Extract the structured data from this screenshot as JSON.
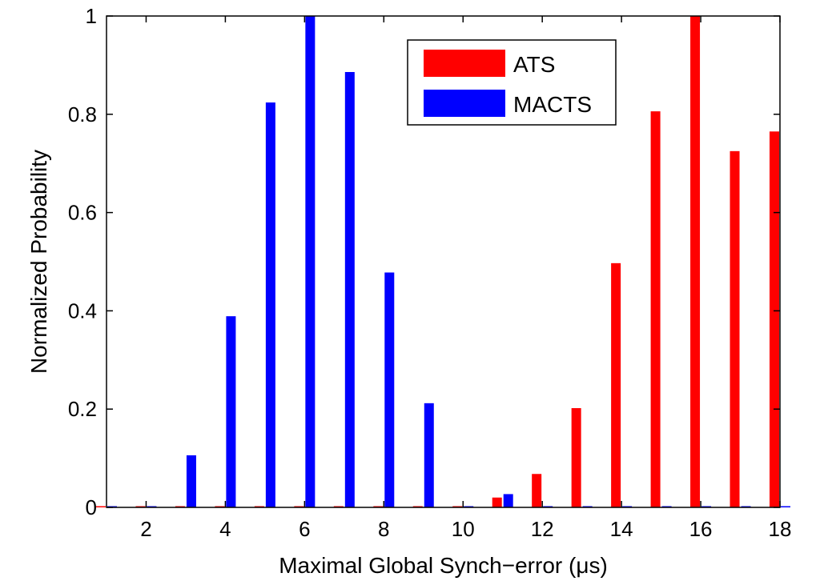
{
  "chart_data": {
    "type": "bar",
    "title": "",
    "xlabel": "Maximal Global Synch−error (μs)",
    "ylabel": "Normalized Probability",
    "xlim": [
      1,
      18
    ],
    "ylim": [
      0,
      1
    ],
    "xticks": [
      2,
      4,
      6,
      8,
      10,
      12,
      14,
      16,
      18
    ],
    "xtick_labels": [
      "2",
      "4",
      "6",
      "8",
      "10",
      "12",
      "14",
      "16",
      "18"
    ],
    "yticks": [
      0,
      0.2,
      0.4,
      0.6,
      0.8,
      1
    ],
    "ytick_labels": [
      "0",
      "0.2",
      "0.4",
      "0.6",
      "0.8",
      "1"
    ],
    "grid": false,
    "legend_position": "top-right",
    "categories": [
      1,
      2,
      3,
      4,
      5,
      6,
      7,
      8,
      9,
      10,
      11,
      12,
      13,
      14,
      15,
      16,
      17,
      18
    ],
    "series": [
      {
        "name": "ATS",
        "color": "#ff0000",
        "values": [
          0,
          0,
          0,
          0,
          0,
          0,
          0,
          0,
          0,
          0,
          0.02,
          0.068,
          0.202,
          0.497,
          0.806,
          1.0,
          0.725,
          0.765
        ]
      },
      {
        "name": "MACTS",
        "color": "#0000ff",
        "values": [
          0,
          0,
          0.106,
          0.389,
          0.824,
          1.0,
          0.886,
          0.478,
          0.212,
          0,
          0.027,
          0,
          0,
          0,
          0,
          0,
          0,
          0
        ]
      }
    ]
  }
}
